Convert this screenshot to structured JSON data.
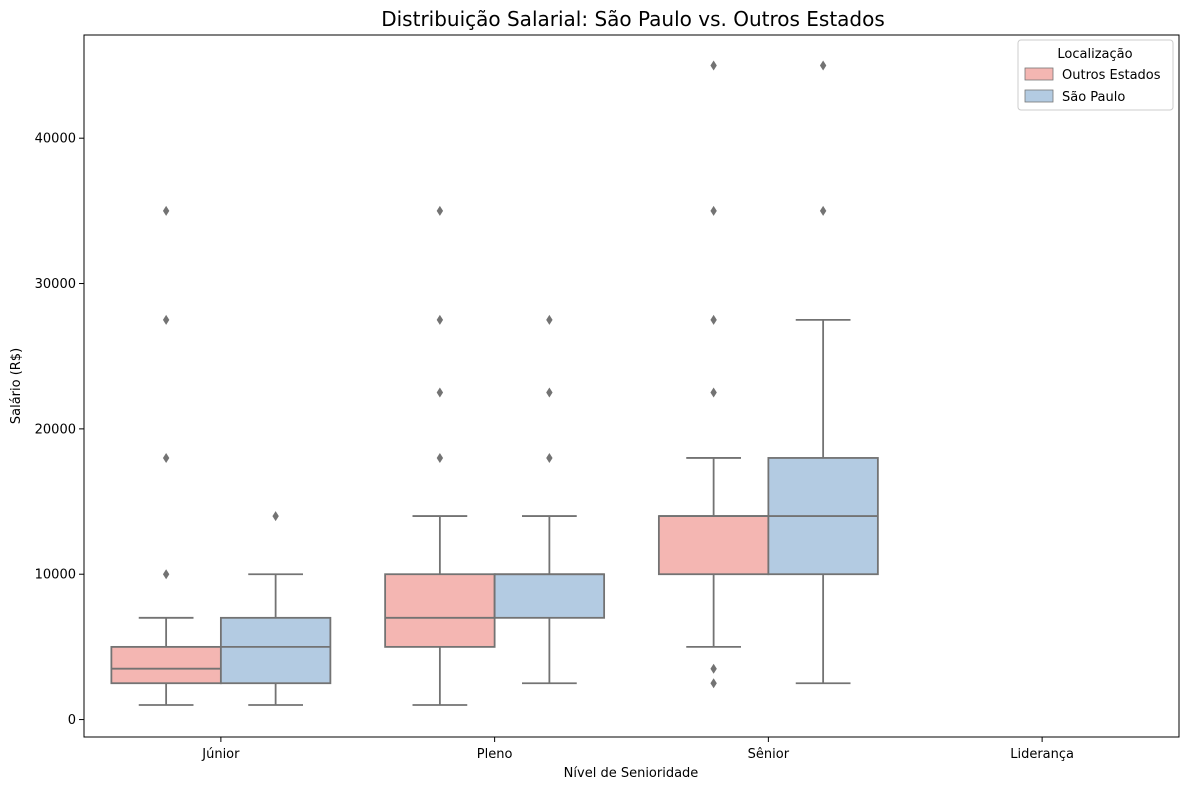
{
  "chart_data": {
    "type": "box",
    "title": "Distribuição Salarial: São Paulo vs. Outros Estados",
    "xlabel": "Nível de Senioridade",
    "ylabel": "Salário (R$)",
    "categories": [
      "Júnior",
      "Pleno",
      "Sênior",
      "Liderança"
    ],
    "yticks": [
      0,
      10000,
      20000,
      30000,
      40000
    ],
    "ylim": [
      -1200,
      47100
    ],
    "legend": {
      "title": "Localização",
      "placement": "top-right"
    },
    "series": [
      {
        "name": "Outros Estados",
        "color": "#f4b6b2",
        "boxes": [
          {
            "category": "Júnior",
            "whisker_low": 1000,
            "q1": 2500,
            "median": 3500,
            "q3": 5000,
            "whisker_high": 7000,
            "outliers": [
              10000,
              18000,
              27500,
              35000
            ]
          },
          {
            "category": "Pleno",
            "whisker_low": 1000,
            "q1": 5000,
            "median": 7000,
            "q3": 10000,
            "whisker_high": 14000,
            "outliers": [
              18000,
              22500,
              27500,
              35000
            ]
          },
          {
            "category": "Sênior",
            "whisker_low": 5000,
            "q1": 10000,
            "median": 14000,
            "q3": 14000,
            "whisker_high": 18000,
            "outliers": [
              2500,
              3500,
              22500,
              27500,
              35000,
              45000
            ]
          }
        ]
      },
      {
        "name": "São Paulo",
        "color": "#b3cbe2",
        "boxes": [
          {
            "category": "Júnior",
            "whisker_low": 1000,
            "q1": 2500,
            "median": 5000,
            "q3": 7000,
            "whisker_high": 10000,
            "outliers": [
              14000
            ]
          },
          {
            "category": "Pleno",
            "whisker_low": 2500,
            "q1": 7000,
            "median": 10000,
            "q3": 10000,
            "whisker_high": 14000,
            "outliers": [
              18000,
              22500,
              27500
            ]
          },
          {
            "category": "Sênior",
            "whisker_low": 2500,
            "q1": 10000,
            "median": 14000,
            "q3": 18000,
            "whisker_high": 27500,
            "outliers": [
              35000,
              45000
            ]
          }
        ]
      }
    ],
    "grid": false
  }
}
